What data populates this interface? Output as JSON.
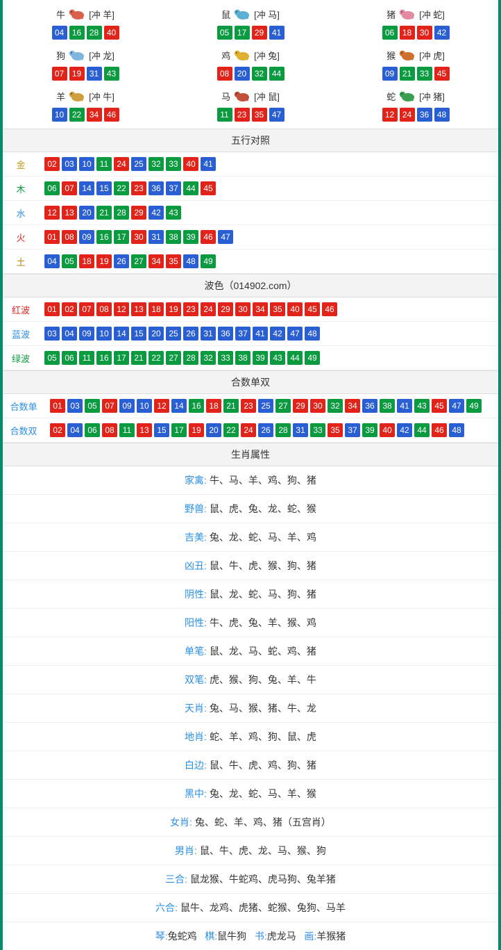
{
  "colors": {
    "red": "#e2231a",
    "blue": "#2a5fd4",
    "green": "#0a9a3f",
    "hdr_bg": "#f3f3f3",
    "border": "#dddddd",
    "outer_border": "#008c6c",
    "label_gold": "#c79a1a",
    "label_green_text": "#0a9a3f",
    "label_blue_text": "#2a8fe6",
    "label_red_text": "#e2231a",
    "label_earth": "#b8860b",
    "zodiac_icons": {
      "ox": "#d9604a",
      "rat": "#5bb0d4",
      "pig": "#e48aa0",
      "dog": "#7fb6e0",
      "rooster": "#e0b030",
      "monkey": "#d07030",
      "goat": "#d0a040",
      "horse": "#c0503a",
      "snake": "#3aa050"
    }
  },
  "zodiac": [
    {
      "name": "牛",
      "icon_key": "ox",
      "conflict": "[冲 羊]",
      "balls": [
        {
          "n": "04",
          "c": "blue"
        },
        {
          "n": "16",
          "c": "green"
        },
        {
          "n": "28",
          "c": "green"
        },
        {
          "n": "40",
          "c": "red"
        }
      ]
    },
    {
      "name": "鼠",
      "icon_key": "rat",
      "conflict": "[冲 马]",
      "balls": [
        {
          "n": "05",
          "c": "green"
        },
        {
          "n": "17",
          "c": "green"
        },
        {
          "n": "29",
          "c": "red"
        },
        {
          "n": "41",
          "c": "blue"
        }
      ]
    },
    {
      "name": "猪",
      "icon_key": "pig",
      "conflict": "[冲 蛇]",
      "balls": [
        {
          "n": "06",
          "c": "green"
        },
        {
          "n": "18",
          "c": "red"
        },
        {
          "n": "30",
          "c": "red"
        },
        {
          "n": "42",
          "c": "blue"
        }
      ]
    },
    {
      "name": "狗",
      "icon_key": "dog",
      "conflict": "[冲 龙]",
      "balls": [
        {
          "n": "07",
          "c": "red"
        },
        {
          "n": "19",
          "c": "red"
        },
        {
          "n": "31",
          "c": "blue"
        },
        {
          "n": "43",
          "c": "green"
        }
      ]
    },
    {
      "name": "鸡",
      "icon_key": "rooster",
      "conflict": "[冲 兔]",
      "balls": [
        {
          "n": "08",
          "c": "red"
        },
        {
          "n": "20",
          "c": "blue"
        },
        {
          "n": "32",
          "c": "green"
        },
        {
          "n": "44",
          "c": "green"
        }
      ]
    },
    {
      "name": "猴",
      "icon_key": "monkey",
      "conflict": "[冲 虎]",
      "balls": [
        {
          "n": "09",
          "c": "blue"
        },
        {
          "n": "21",
          "c": "green"
        },
        {
          "n": "33",
          "c": "green"
        },
        {
          "n": "45",
          "c": "red"
        }
      ]
    },
    {
      "name": "羊",
      "icon_key": "goat",
      "conflict": "[冲 牛]",
      "balls": [
        {
          "n": "10",
          "c": "blue"
        },
        {
          "n": "22",
          "c": "green"
        },
        {
          "n": "34",
          "c": "red"
        },
        {
          "n": "46",
          "c": "red"
        }
      ]
    },
    {
      "name": "马",
      "icon_key": "horse",
      "conflict": "[冲 鼠]",
      "balls": [
        {
          "n": "11",
          "c": "green"
        },
        {
          "n": "23",
          "c": "red"
        },
        {
          "n": "35",
          "c": "red"
        },
        {
          "n": "47",
          "c": "blue"
        }
      ]
    },
    {
      "name": "蛇",
      "icon_key": "snake",
      "conflict": "[冲 猪]",
      "balls": [
        {
          "n": "12",
          "c": "red"
        },
        {
          "n": "24",
          "c": "red"
        },
        {
          "n": "36",
          "c": "blue"
        },
        {
          "n": "48",
          "c": "blue"
        }
      ]
    }
  ],
  "sections": {
    "wuxing_title": "五行对照",
    "bose_title": "波色（014902.com）",
    "heshu_title": "合数单双",
    "shuxing_title": "生肖属性"
  },
  "wuxing": [
    {
      "label": "金",
      "label_color": "label_gold",
      "balls": [
        {
          "n": "02",
          "c": "red"
        },
        {
          "n": "03",
          "c": "blue"
        },
        {
          "n": "10",
          "c": "blue"
        },
        {
          "n": "11",
          "c": "green"
        },
        {
          "n": "24",
          "c": "red"
        },
        {
          "n": "25",
          "c": "blue"
        },
        {
          "n": "32",
          "c": "green"
        },
        {
          "n": "33",
          "c": "green"
        },
        {
          "n": "40",
          "c": "red"
        },
        {
          "n": "41",
          "c": "blue"
        }
      ]
    },
    {
      "label": "木",
      "label_color": "label_green_text",
      "balls": [
        {
          "n": "06",
          "c": "green"
        },
        {
          "n": "07",
          "c": "red"
        },
        {
          "n": "14",
          "c": "blue"
        },
        {
          "n": "15",
          "c": "blue"
        },
        {
          "n": "22",
          "c": "green"
        },
        {
          "n": "23",
          "c": "red"
        },
        {
          "n": "36",
          "c": "blue"
        },
        {
          "n": "37",
          "c": "blue"
        },
        {
          "n": "44",
          "c": "green"
        },
        {
          "n": "45",
          "c": "red"
        }
      ]
    },
    {
      "label": "水",
      "label_color": "label_blue_text",
      "balls": [
        {
          "n": "12",
          "c": "red"
        },
        {
          "n": "13",
          "c": "red"
        },
        {
          "n": "20",
          "c": "blue"
        },
        {
          "n": "21",
          "c": "green"
        },
        {
          "n": "28",
          "c": "green"
        },
        {
          "n": "29",
          "c": "red"
        },
        {
          "n": "42",
          "c": "blue"
        },
        {
          "n": "43",
          "c": "green"
        }
      ]
    },
    {
      "label": "火",
      "label_color": "label_red_text",
      "balls": [
        {
          "n": "01",
          "c": "red"
        },
        {
          "n": "08",
          "c": "red"
        },
        {
          "n": "09",
          "c": "blue"
        },
        {
          "n": "16",
          "c": "green"
        },
        {
          "n": "17",
          "c": "green"
        },
        {
          "n": "30",
          "c": "red"
        },
        {
          "n": "31",
          "c": "blue"
        },
        {
          "n": "38",
          "c": "green"
        },
        {
          "n": "39",
          "c": "green"
        },
        {
          "n": "46",
          "c": "red"
        },
        {
          "n": "47",
          "c": "blue"
        }
      ]
    },
    {
      "label": "土",
      "label_color": "label_earth",
      "balls": [
        {
          "n": "04",
          "c": "blue"
        },
        {
          "n": "05",
          "c": "green"
        },
        {
          "n": "18",
          "c": "red"
        },
        {
          "n": "19",
          "c": "red"
        },
        {
          "n": "26",
          "c": "blue"
        },
        {
          "n": "27",
          "c": "green"
        },
        {
          "n": "34",
          "c": "red"
        },
        {
          "n": "35",
          "c": "red"
        },
        {
          "n": "48",
          "c": "blue"
        },
        {
          "n": "49",
          "c": "green"
        }
      ]
    }
  ],
  "bose": [
    {
      "label": "红波",
      "label_color": "label_red_text",
      "balls": [
        {
          "n": "01",
          "c": "red"
        },
        {
          "n": "02",
          "c": "red"
        },
        {
          "n": "07",
          "c": "red"
        },
        {
          "n": "08",
          "c": "red"
        },
        {
          "n": "12",
          "c": "red"
        },
        {
          "n": "13",
          "c": "red"
        },
        {
          "n": "18",
          "c": "red"
        },
        {
          "n": "19",
          "c": "red"
        },
        {
          "n": "23",
          "c": "red"
        },
        {
          "n": "24",
          "c": "red"
        },
        {
          "n": "29",
          "c": "red"
        },
        {
          "n": "30",
          "c": "red"
        },
        {
          "n": "34",
          "c": "red"
        },
        {
          "n": "35",
          "c": "red"
        },
        {
          "n": "40",
          "c": "red"
        },
        {
          "n": "45",
          "c": "red"
        },
        {
          "n": "46",
          "c": "red"
        }
      ]
    },
    {
      "label": "蓝波",
      "label_color": "label_blue_text",
      "balls": [
        {
          "n": "03",
          "c": "blue"
        },
        {
          "n": "04",
          "c": "blue"
        },
        {
          "n": "09",
          "c": "blue"
        },
        {
          "n": "10",
          "c": "blue"
        },
        {
          "n": "14",
          "c": "blue"
        },
        {
          "n": "15",
          "c": "blue"
        },
        {
          "n": "20",
          "c": "blue"
        },
        {
          "n": "25",
          "c": "blue"
        },
        {
          "n": "26",
          "c": "blue"
        },
        {
          "n": "31",
          "c": "blue"
        },
        {
          "n": "36",
          "c": "blue"
        },
        {
          "n": "37",
          "c": "blue"
        },
        {
          "n": "41",
          "c": "blue"
        },
        {
          "n": "42",
          "c": "blue"
        },
        {
          "n": "47",
          "c": "blue"
        },
        {
          "n": "48",
          "c": "blue"
        }
      ]
    },
    {
      "label": "绿波",
      "label_color": "label_green_text",
      "balls": [
        {
          "n": "05",
          "c": "green"
        },
        {
          "n": "06",
          "c": "green"
        },
        {
          "n": "11",
          "c": "green"
        },
        {
          "n": "16",
          "c": "green"
        },
        {
          "n": "17",
          "c": "green"
        },
        {
          "n": "21",
          "c": "green"
        },
        {
          "n": "22",
          "c": "green"
        },
        {
          "n": "27",
          "c": "green"
        },
        {
          "n": "28",
          "c": "green"
        },
        {
          "n": "32",
          "c": "green"
        },
        {
          "n": "33",
          "c": "green"
        },
        {
          "n": "38",
          "c": "green"
        },
        {
          "n": "39",
          "c": "green"
        },
        {
          "n": "43",
          "c": "green"
        },
        {
          "n": "44",
          "c": "green"
        },
        {
          "n": "49",
          "c": "green"
        }
      ]
    }
  ],
  "heshu": [
    {
      "label": "合数单",
      "label_color": "label_blue_text",
      "balls": [
        {
          "n": "01",
          "c": "red"
        },
        {
          "n": "03",
          "c": "blue"
        },
        {
          "n": "05",
          "c": "green"
        },
        {
          "n": "07",
          "c": "red"
        },
        {
          "n": "09",
          "c": "blue"
        },
        {
          "n": "10",
          "c": "blue"
        },
        {
          "n": "12",
          "c": "red"
        },
        {
          "n": "14",
          "c": "blue"
        },
        {
          "n": "16",
          "c": "green"
        },
        {
          "n": "18",
          "c": "red"
        },
        {
          "n": "21",
          "c": "green"
        },
        {
          "n": "23",
          "c": "red"
        },
        {
          "n": "25",
          "c": "blue"
        },
        {
          "n": "27",
          "c": "green"
        },
        {
          "n": "29",
          "c": "red"
        },
        {
          "n": "30",
          "c": "red"
        },
        {
          "n": "32",
          "c": "green"
        },
        {
          "n": "34",
          "c": "red"
        },
        {
          "n": "36",
          "c": "blue"
        },
        {
          "n": "38",
          "c": "green"
        },
        {
          "n": "41",
          "c": "blue"
        },
        {
          "n": "43",
          "c": "green"
        },
        {
          "n": "45",
          "c": "red"
        },
        {
          "n": "47",
          "c": "blue"
        },
        {
          "n": "49",
          "c": "green"
        }
      ]
    },
    {
      "label": "合数双",
      "label_color": "label_blue_text",
      "balls": [
        {
          "n": "02",
          "c": "red"
        },
        {
          "n": "04",
          "c": "blue"
        },
        {
          "n": "06",
          "c": "green"
        },
        {
          "n": "08",
          "c": "red"
        },
        {
          "n": "11",
          "c": "green"
        },
        {
          "n": "13",
          "c": "red"
        },
        {
          "n": "15",
          "c": "blue"
        },
        {
          "n": "17",
          "c": "green"
        },
        {
          "n": "19",
          "c": "red"
        },
        {
          "n": "20",
          "c": "blue"
        },
        {
          "n": "22",
          "c": "green"
        },
        {
          "n": "24",
          "c": "red"
        },
        {
          "n": "26",
          "c": "blue"
        },
        {
          "n": "28",
          "c": "green"
        },
        {
          "n": "31",
          "c": "blue"
        },
        {
          "n": "33",
          "c": "green"
        },
        {
          "n": "35",
          "c": "red"
        },
        {
          "n": "37",
          "c": "blue"
        },
        {
          "n": "39",
          "c": "green"
        },
        {
          "n": "40",
          "c": "red"
        },
        {
          "n": "42",
          "c": "blue"
        },
        {
          "n": "44",
          "c": "green"
        },
        {
          "n": "46",
          "c": "red"
        },
        {
          "n": "48",
          "c": "blue"
        }
      ]
    }
  ],
  "attributes": [
    {
      "label": "家禽:",
      "label_color": "label_blue_text",
      "value": "牛、马、羊、鸡、狗、猪"
    },
    {
      "label": "野兽:",
      "label_color": "label_blue_text",
      "value": "鼠、虎、兔、龙、蛇、猴"
    },
    {
      "label": "吉美:",
      "label_color": "label_blue_text",
      "value": "兔、龙、蛇、马、羊、鸡"
    },
    {
      "label": "凶丑:",
      "label_color": "label_blue_text",
      "value": "鼠、牛、虎、猴、狗、猪"
    },
    {
      "label": "阴性:",
      "label_color": "label_blue_text",
      "value": "鼠、龙、蛇、马、狗、猪"
    },
    {
      "label": "阳性:",
      "label_color": "label_blue_text",
      "value": "牛、虎、兔、羊、猴、鸡"
    },
    {
      "label": "单笔:",
      "label_color": "label_blue_text",
      "value": "鼠、龙、马、蛇、鸡、猪"
    },
    {
      "label": "双笔:",
      "label_color": "label_blue_text",
      "value": "虎、猴、狗、兔、羊、牛"
    },
    {
      "label": "天肖:",
      "label_color": "label_blue_text",
      "value": "兔、马、猴、猪、牛、龙"
    },
    {
      "label": "地肖:",
      "label_color": "label_blue_text",
      "value": "蛇、羊、鸡、狗、鼠、虎"
    },
    {
      "label": "白边:",
      "label_color": "label_blue_text",
      "value": "鼠、牛、虎、鸡、狗、猪"
    },
    {
      "label": "黑中:",
      "label_color": "label_blue_text",
      "value": "兔、龙、蛇、马、羊、猴"
    },
    {
      "label": "女肖:",
      "label_color": "label_blue_text",
      "value": "兔、蛇、羊、鸡、猪（五宫肖）"
    },
    {
      "label": "男肖:",
      "label_color": "label_blue_text",
      "value": "鼠、牛、虎、龙、马、猴、狗"
    },
    {
      "label": "三合:",
      "label_color": "label_blue_text",
      "value": "鼠龙猴、牛蛇鸡、虎马狗、兔羊猪"
    },
    {
      "label": "六合:",
      "label_color": "label_blue_text",
      "value": "鼠牛、龙鸡、虎猪、蛇猴、兔狗、马羊"
    }
  ],
  "footer_parts": [
    {
      "label": "琴:",
      "label_color": "label_blue_text",
      "value": "兔蛇鸡"
    },
    {
      "label": "棋:",
      "label_color": "label_blue_text",
      "value": "鼠牛狗"
    },
    {
      "label": "书:",
      "label_color": "label_blue_text",
      "value": "虎龙马"
    },
    {
      "label": "画:",
      "label_color": "label_blue_text",
      "value": "羊猴猪"
    }
  ]
}
